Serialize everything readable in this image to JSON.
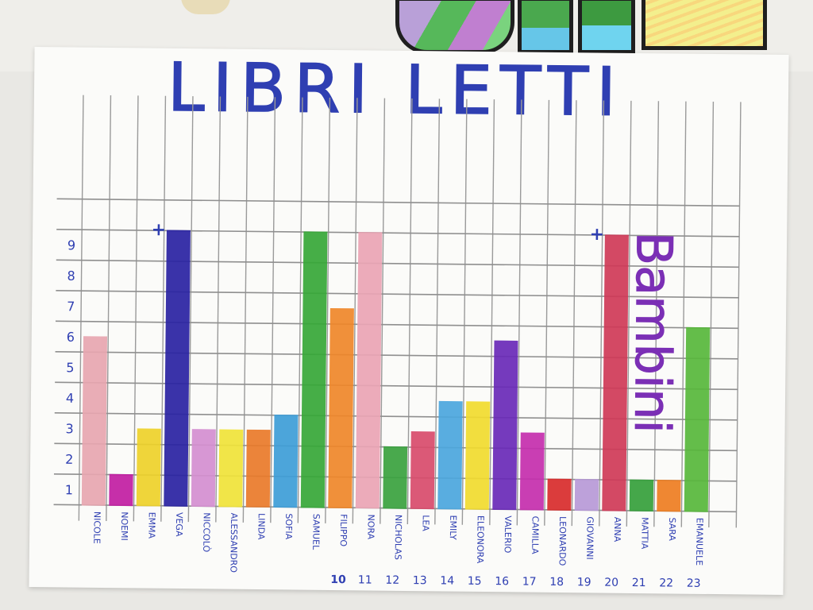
{
  "chart_data": {
    "type": "bar",
    "title": "LIBRI LETTI",
    "ylabel": "Bambini",
    "ylim": [
      0,
      10
    ],
    "y_ticks": [
      "1",
      "2",
      "3",
      "4",
      "5",
      "6",
      "7",
      "8",
      "9"
    ],
    "categories": [
      "NICOLE",
      "NOEMI",
      "EMMA",
      "VEGA",
      "NICCOLÒ",
      "ALESSANDRO",
      "LINDA",
      "SOFIA",
      "SAMUEL",
      "FILIPPO",
      "NORA",
      "NICHOLAS",
      "LEA",
      "EMILY",
      "ELEONORA",
      "VALERIO",
      "CAMILLA",
      "LEONARDO",
      "GIOVANNI",
      "ANNA",
      "MATTIA",
      "SARA",
      "EMANUELE"
    ],
    "numbers": [
      "",
      "",
      "",
      "",
      "",
      "",
      "",
      "",
      "",
      "10",
      "11",
      "12",
      "13",
      "14",
      "15",
      "16",
      "17",
      "18",
      "19",
      "20",
      "21",
      "22",
      "23"
    ],
    "values": [
      5.5,
      1,
      2.5,
      9,
      2.5,
      2.5,
      2.5,
      3,
      9,
      6.5,
      9,
      2,
      2.5,
      3.5,
      3.5,
      5.5,
      2.5,
      1,
      1,
      9,
      1,
      1,
      6
    ],
    "plus_marks": [
      "+",
      "+"
    ],
    "colors": [
      "#e8a6b0",
      "#c21ea3",
      "#eed22a",
      "#2a23a3",
      "#d58fd1",
      "#f1e43a",
      "#ea7a2a",
      "#3e9ed8",
      "#37a838",
      "#f0872a",
      "#eba5b5",
      "#3aa33f",
      "#d94c6c",
      "#4ca7de",
      "#f2dc2f",
      "#6a2ab8",
      "#c52fae",
      "#d92c2c",
      "#b89ad8",
      "#d03a58",
      "#36a03c",
      "#ee7e22",
      "#58b83c"
    ]
  }
}
